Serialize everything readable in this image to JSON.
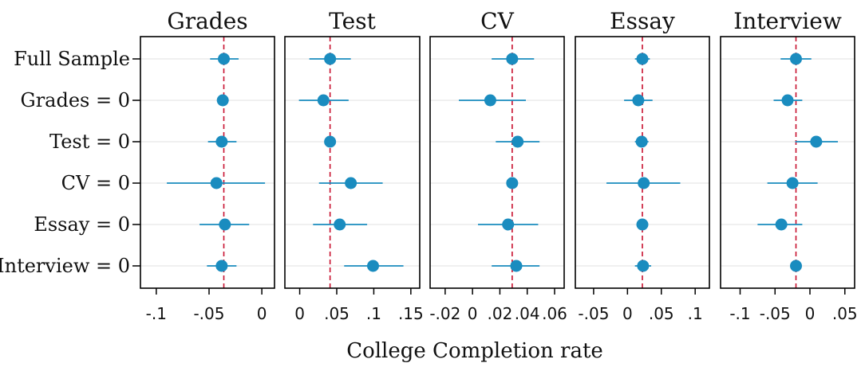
{
  "chart_data": {
    "type": "scatter",
    "xlabel": "College Completion rate",
    "rows": [
      "Full Sample",
      "Grades = 0",
      "Test = 0",
      "CV = 0",
      "Essay = 0",
      "Interview = 0"
    ],
    "grid": true,
    "colors": {
      "marker": "#1a8cbf",
      "ci": "#1a8cbf",
      "refline": "#c8102e",
      "grid": "#e6e6e6",
      "frame": "#000000"
    },
    "panels": [
      {
        "title": "Grades",
        "xlim": [
          -0.115,
          0.012
        ],
        "ticks": [
          -0.1,
          -0.05,
          0
        ],
        "tick_labels": [
          "-.1",
          "-.05",
          "0"
        ],
        "reference": -0.036,
        "points": [
          {
            "est": -0.036,
            "lo": -0.049,
            "hi": -0.022
          },
          {
            "est": -0.037,
            "lo": -0.037,
            "hi": -0.037
          },
          {
            "est": -0.038,
            "lo": -0.051,
            "hi": -0.024
          },
          {
            "est": -0.043,
            "lo": -0.09,
            "hi": 0.003
          },
          {
            "est": -0.035,
            "lo": -0.059,
            "hi": -0.012
          },
          {
            "est": -0.038,
            "lo": -0.052,
            "hi": -0.024
          }
        ]
      },
      {
        "title": "Test",
        "xlim": [
          -0.02,
          0.162
        ],
        "ticks": [
          0,
          0.05,
          0.1,
          0.15
        ],
        "tick_labels": [
          "0",
          ".05",
          ".1",
          ".15"
        ],
        "reference": 0.041,
        "points": [
          {
            "est": 0.041,
            "lo": 0.013,
            "hi": 0.069
          },
          {
            "est": 0.032,
            "lo": -0.001,
            "hi": 0.066
          },
          {
            "est": 0.041,
            "lo": 0.041,
            "hi": 0.041
          },
          {
            "est": 0.069,
            "lo": 0.026,
            "hi": 0.112
          },
          {
            "est": 0.054,
            "lo": 0.018,
            "hi": 0.091
          },
          {
            "est": 0.099,
            "lo": 0.06,
            "hi": 0.14
          }
        ]
      },
      {
        "title": "CV",
        "xlim": [
          -0.031,
          0.067
        ],
        "ticks": [
          -0.02,
          0,
          0.02,
          0.04,
          0.06
        ],
        "tick_labels": [
          "-.02",
          "0",
          ".02",
          ".04",
          ".06"
        ],
        "reference": 0.029,
        "points": [
          {
            "est": 0.029,
            "lo": 0.014,
            "hi": 0.045
          },
          {
            "est": 0.013,
            "lo": -0.01,
            "hi": 0.039
          },
          {
            "est": 0.033,
            "lo": 0.017,
            "hi": 0.049
          },
          {
            "est": 0.029,
            "lo": 0.029,
            "hi": 0.029
          },
          {
            "est": 0.026,
            "lo": 0.004,
            "hi": 0.048
          },
          {
            "est": 0.032,
            "lo": 0.014,
            "hi": 0.049
          }
        ]
      },
      {
        "title": "Essay",
        "xlim": [
          -0.077,
          0.121
        ],
        "ticks": [
          -0.05,
          0,
          0.05,
          0.1
        ],
        "tick_labels": [
          "-.05",
          "0",
          ".05",
          ".1"
        ],
        "reference": 0.022,
        "points": [
          {
            "est": 0.022,
            "lo": 0.011,
            "hi": 0.033
          },
          {
            "est": 0.016,
            "lo": -0.005,
            "hi": 0.037
          },
          {
            "est": 0.021,
            "lo": 0.011,
            "hi": 0.031
          },
          {
            "est": 0.024,
            "lo": -0.031,
            "hi": 0.078
          },
          {
            "est": 0.022,
            "lo": 0.022,
            "hi": 0.022
          },
          {
            "est": 0.023,
            "lo": 0.011,
            "hi": 0.035
          }
        ]
      },
      {
        "title": "Interview",
        "xlim": [
          -0.128,
          0.064
        ],
        "ticks": [
          -0.1,
          -0.05,
          0,
          0.05
        ],
        "tick_labels": [
          "-.1",
          "-.05",
          "0",
          ".05"
        ],
        "reference": -0.02,
        "points": [
          {
            "est": -0.02,
            "lo": -0.042,
            "hi": 0.002
          },
          {
            "est": -0.032,
            "lo": -0.052,
            "hi": -0.011
          },
          {
            "est": 0.009,
            "lo": -0.021,
            "hi": 0.04
          },
          {
            "est": -0.025,
            "lo": -0.061,
            "hi": 0.011
          },
          {
            "est": -0.041,
            "lo": -0.075,
            "hi": -0.011
          },
          {
            "est": -0.02,
            "lo": -0.02,
            "hi": -0.02
          }
        ]
      }
    ]
  }
}
